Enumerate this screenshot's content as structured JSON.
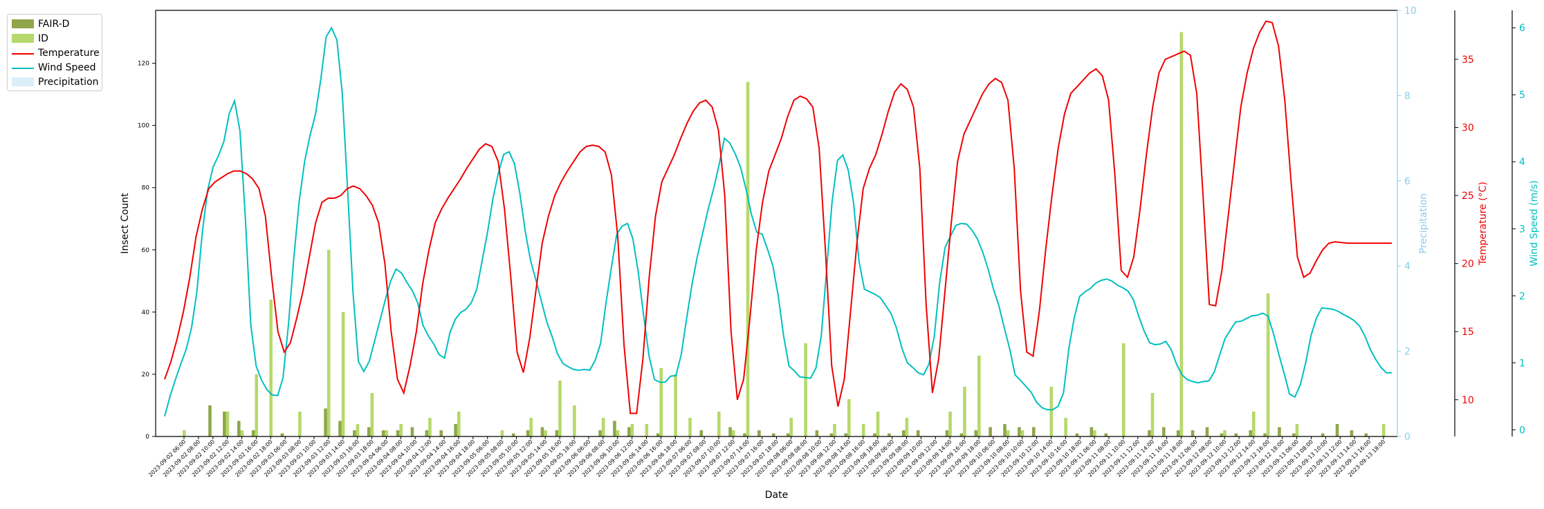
{
  "chart_data": {
    "type": "bar+line",
    "xlabel": "Date",
    "ylabel_left": "Insect Count",
    "y_left_ticks": [
      "0",
      "20",
      "40",
      "60",
      "80",
      "100",
      "120"
    ],
    "y_left_lim": [
      0,
      137
    ],
    "y_precip_label": "Precipitation",
    "y_precip_ticks": [
      "0",
      "2",
      "4",
      "6",
      "8",
      "10"
    ],
    "y_precip_lim": [
      0,
      10
    ],
    "y_temp_label": "Temperature (°C)",
    "y_temp_ticks": [
      "10",
      "15",
      "20",
      "25",
      "30",
      "35"
    ],
    "y_temp_lim": [
      7.3,
      38.6
    ],
    "y_wind_label": "Wind Speed (m/s)",
    "y_wind_ticks": [
      "0",
      "1",
      "2",
      "3",
      "4",
      "5",
      "6"
    ],
    "y_wind_lim": [
      -0.1,
      6.26
    ],
    "legend_position": "outside-top-left",
    "legend": [
      {
        "key": "faird",
        "label": "FAIR-D",
        "kind": "bar",
        "color": "#8fa64b"
      },
      {
        "key": "id",
        "label": "ID",
        "kind": "bar",
        "color": "#b5d96a"
      },
      {
        "key": "temp",
        "label": "Temperature",
        "kind": "line",
        "color": "#ee0000"
      },
      {
        "key": "wind",
        "label": "Wind Speed",
        "kind": "line",
        "color": "#00bfbf"
      },
      {
        "key": "precip",
        "label": "Precipitation",
        "kind": "area",
        "color": "#cdeaf8"
      }
    ],
    "x_ticks": [
      "2023-09-02 06:00",
      "2023-09-02 08:00",
      "2023-09-02 10:00",
      "2023-09-02 12:00",
      "2023-09-02 14:00",
      "2023-09-02 16:00",
      "2023-09-02 18:00",
      "2023-09-03 06:00",
      "2023-09-03 08:00",
      "2023-09-03 10:00",
      "2023-09-03 12:00",
      "2023-09-03 14:00",
      "2023-09-03 16:00",
      "2023-09-03 18:00",
      "2023-09-04 06:00",
      "2023-09-04 08:00",
      "2023-09-04 10:00",
      "2023-09-04 12:00",
      "2023-09-04 14:00",
      "2023-09-04 16:00",
      "2023-09-04 18:00",
      "2023-09-05 06:00",
      "2023-09-05 08:00",
      "2023-09-05 10:00",
      "2023-09-05 12:00",
      "2023-09-05 14:00",
      "2023-09-05 16:00",
      "2023-09-05 18:00",
      "2023-09-06 06:00",
      "2023-09-06 08:00",
      "2023-09-06 10:00",
      "2023-09-06 12:00",
      "2023-09-06 14:00",
      "2023-09-06 16:00",
      "2023-09-06 18:00",
      "2023-09-07 06:00",
      "2023-09-07 08:00",
      "2023-09-07 10:00",
      "2023-09-07 12:00",
      "2023-09-07 14:00",
      "2023-09-07 16:00",
      "2023-09-07 18:00",
      "2023-09-08 06:00",
      "2023-09-08 08:00",
      "2023-09-08 10:00",
      "2023-09-08 12:00",
      "2023-09-08 14:00",
      "2023-09-08 16:00",
      "2023-09-08 18:00",
      "2023-09-09 06:00",
      "2023-09-09 08:00",
      "2023-09-09 10:00",
      "2023-09-09 12:00",
      "2023-09-09 14:00",
      "2023-09-09 16:00",
      "2023-09-09 18:00",
      "2023-09-10 06:00",
      "2023-09-10 08:00",
      "2023-09-10 10:00",
      "2023-09-10 12:00",
      "2023-09-10 14:00",
      "2023-09-10 16:00",
      "2023-09-10 18:00",
      "2023-09-11 06:00",
      "2023-09-11 08:00",
      "2023-09-11 10:00",
      "2023-09-11 12:00",
      "2023-09-11 14:00",
      "2023-09-11 16:00",
      "2023-09-11 18:00",
      "2023-09-12 06:00",
      "2023-09-12 08:00",
      "2023-09-12 10:00",
      "2023-09-12 12:00",
      "2023-09-12 14:00",
      "2023-09-12 16:00",
      "2023-09-12 18:00",
      "2023-09-13 06:00",
      "2023-09-13 08:00",
      "2023-09-13 10:00",
      "2023-09-13 12:00",
      "2023-09-13 14:00",
      "2023-09-13 16:00",
      "2023-09-13 18:00"
    ],
    "fair_d": [
      0,
      0,
      10,
      8,
      5,
      2,
      0,
      1,
      0,
      0,
      9,
      5,
      2,
      3,
      2,
      2,
      3,
      2,
      2,
      4,
      0,
      0,
      0,
      1,
      2,
      3,
      2,
      0,
      0,
      2,
      5,
      3,
      0,
      1,
      0,
      0,
      2,
      0,
      3,
      1,
      2,
      1,
      1,
      0,
      2,
      1,
      1,
      0,
      1,
      1,
      2,
      2,
      0,
      2,
      1,
      2,
      3,
      4,
      3,
      3,
      0,
      0,
      1,
      3,
      1,
      0,
      0,
      2,
      3,
      2,
      2,
      3,
      1,
      1,
      2,
      1,
      3,
      1,
      0,
      1,
      4,
      2,
      1,
      0
    ],
    "id_counts": [
      2,
      0,
      0,
      8,
      2,
      20,
      44,
      0,
      8,
      0,
      60,
      40,
      4,
      14,
      2,
      4,
      0,
      6,
      0,
      8,
      0,
      0,
      2,
      0,
      6,
      2,
      18,
      10,
      0,
      6,
      2,
      4,
      4,
      22,
      20,
      6,
      0,
      8,
      2,
      114,
      0,
      0,
      6,
      30,
      0,
      4,
      12,
      4,
      8,
      0,
      6,
      0,
      0,
      8,
      16,
      26,
      0,
      2,
      2,
      0,
      16,
      6,
      0,
      2,
      0,
      30,
      0,
      14,
      0,
      130,
      0,
      0,
      2,
      0,
      8,
      46,
      0,
      4,
      0,
      0,
      0,
      0,
      0,
      4
    ],
    "temperature": [
      11.5,
      12.8,
      14.5,
      16.5,
      19.0,
      22.0,
      24.0,
      25.5,
      26.0,
      26.3,
      26.6,
      26.8,
      26.8,
      26.6,
      26.2,
      25.5,
      23.5,
      19.0,
      15.0,
      13.5,
      14.2,
      16.0,
      18.0,
      20.5,
      23.0,
      24.5,
      24.8,
      24.8,
      25.0,
      25.5,
      25.7,
      25.5,
      25.0,
      24.3,
      23.0,
      20.0,
      15.0,
      11.5,
      10.5,
      12.5,
      15.0,
      18.5,
      21.0,
      23.0,
      24.0,
      24.8,
      25.5,
      26.2,
      27.0,
      27.7,
      28.4,
      28.8,
      28.6,
      27.5,
      24.0,
      19.0,
      13.5,
      12.0,
      14.5,
      18.0,
      21.5,
      23.5,
      25.0,
      26.0,
      26.8,
      27.5,
      28.2,
      28.6,
      28.7,
      28.6,
      28.2,
      26.5,
      22.0,
      14.0,
      9.0,
      9.0,
      13.0,
      19.0,
      23.5,
      26.0,
      27.0,
      28.0,
      29.2,
      30.3,
      31.2,
      31.8,
      32.0,
      31.5,
      29.8,
      25.0,
      15.0,
      10.0,
      11.5,
      16.0,
      21.0,
      24.5,
      26.8,
      28.0,
      29.2,
      30.8,
      32.0,
      32.3,
      32.1,
      31.5,
      28.5,
      21.0,
      12.5,
      9.5,
      11.5,
      16.5,
      21.5,
      25.5,
      27.0,
      28.0,
      29.5,
      31.2,
      32.6,
      33.2,
      32.8,
      31.5,
      27.0,
      17.0,
      10.5,
      13.0,
      18.0,
      23.0,
      27.5,
      29.5,
      30.5,
      31.5,
      32.5,
      33.2,
      33.6,
      33.3,
      32.0,
      27.0,
      18.0,
      13.5,
      13.2,
      16.5,
      21.0,
      25.0,
      28.5,
      31.0,
      32.5,
      33.0,
      33.5,
      34.0,
      34.3,
      33.8,
      32.0,
      26.5,
      19.5,
      19.0,
      20.5,
      24.0,
      28.0,
      31.5,
      34.0,
      35.0,
      35.2,
      35.4,
      35.6,
      35.3,
      32.5,
      25.0,
      17.0,
      16.9,
      19.5,
      23.5,
      27.5,
      31.5,
      34.0,
      35.8,
      37.0,
      37.8,
      37.7,
      36.0,
      32.0,
      26.0,
      20.5,
      19.0,
      19.3,
      20.2,
      21.0,
      21.5,
      21.6,
      21.55,
      21.5,
      21.5,
      21.5,
      21.5,
      21.5,
      21.5,
      21.5,
      21.5
    ],
    "wind_speed": [
      0.2,
      0.5,
      0.75,
      0.98,
      1.2,
      1.52,
      2.07,
      2.95,
      3.58,
      3.92,
      4.09,
      4.3,
      4.72,
      4.91,
      4.46,
      3.16,
      1.57,
      0.95,
      0.74,
      0.6,
      0.52,
      0.51,
      0.78,
      1.57,
      2.56,
      3.41,
      4.0,
      4.39,
      4.7,
      5.22,
      5.86,
      6.0,
      5.82,
      5.02,
      3.58,
      2.05,
      1.02,
      0.87,
      1.02,
      1.32,
      1.63,
      1.94,
      2.22,
      2.4,
      2.34,
      2.2,
      2.08,
      1.9,
      1.56,
      1.4,
      1.28,
      1.12,
      1.07,
      1.45,
      1.65,
      1.75,
      1.8,
      1.9,
      2.1,
      2.53,
      2.95,
      3.45,
      3.83,
      4.11,
      4.15,
      3.97,
      3.53,
      2.96,
      2.52,
      2.23,
      1.92,
      1.61,
      1.39,
      1.13,
      0.99,
      0.94,
      0.9,
      0.89,
      0.9,
      0.89,
      1.04,
      1.29,
      1.89,
      2.42,
      2.92,
      3.04,
      3.08,
      2.85,
      2.35,
      1.7,
      1.1,
      0.75,
      0.71,
      0.71,
      0.8,
      0.81,
      1.13,
      1.67,
      2.18,
      2.6,
      2.95,
      3.3,
      3.6,
      3.95,
      4.35,
      4.28,
      4.12,
      3.92,
      3.6,
      3.22,
      2.95,
      2.92,
      2.7,
      2.45,
      2.0,
      1.4,
      0.95,
      0.88,
      0.79,
      0.78,
      0.77,
      0.92,
      1.4,
      2.39,
      3.4,
      4.02,
      4.1,
      3.88,
      3.39,
      2.52,
      2.1,
      2.06,
      2.02,
      1.97,
      1.85,
      1.73,
      1.51,
      1.21,
      1.0,
      0.93,
      0.85,
      0.82,
      0.98,
      1.4,
      2.2,
      2.72,
      2.89,
      3.05,
      3.08,
      3.07,
      2.98,
      2.85,
      2.65,
      2.4,
      2.1,
      1.85,
      1.52,
      1.21,
      0.82,
      0.74,
      0.65,
      0.56,
      0.41,
      0.33,
      0.3,
      0.3,
      0.35,
      0.55,
      1.22,
      1.67,
      1.99,
      2.06,
      2.11,
      2.19,
      2.23,
      2.25,
      2.22,
      2.16,
      2.12,
      2.07,
      1.94,
      1.69,
      1.47,
      1.3,
      1.27,
      1.28,
      1.32,
      1.2,
      0.98,
      0.82,
      0.75,
      0.72,
      0.7,
      0.72,
      0.73,
      0.86,
      1.11,
      1.36,
      1.49,
      1.61,
      1.62,
      1.66,
      1.7,
      1.71,
      1.74,
      1.7,
      1.44,
      1.13,
      0.84,
      0.53,
      0.49,
      0.67,
      1.0,
      1.41,
      1.67,
      1.82,
      1.81,
      1.8,
      1.77,
      1.72,
      1.68,
      1.63,
      1.55,
      1.4,
      1.2,
      1.05,
      0.93,
      0.85,
      0.85
    ],
    "precipitation": [
      0,
      0,
      0,
      0,
      0,
      0,
      0,
      0,
      0,
      0,
      0,
      0,
      0,
      0,
      0,
      0,
      0,
      0,
      0,
      0,
      0,
      0,
      0,
      0,
      0,
      0,
      0,
      0,
      0,
      0,
      0,
      0,
      0,
      0,
      0,
      0,
      0,
      0,
      0,
      0,
      0,
      0,
      0,
      0,
      0,
      0,
      0,
      0,
      0,
      0,
      0,
      0,
      0,
      0,
      0,
      0,
      0,
      0,
      0,
      0,
      0,
      0,
      0,
      0,
      0,
      0,
      0,
      0,
      0,
      0,
      0,
      0,
      0,
      0,
      0,
      0,
      0,
      0,
      0,
      0,
      0,
      0,
      0,
      0
    ]
  }
}
